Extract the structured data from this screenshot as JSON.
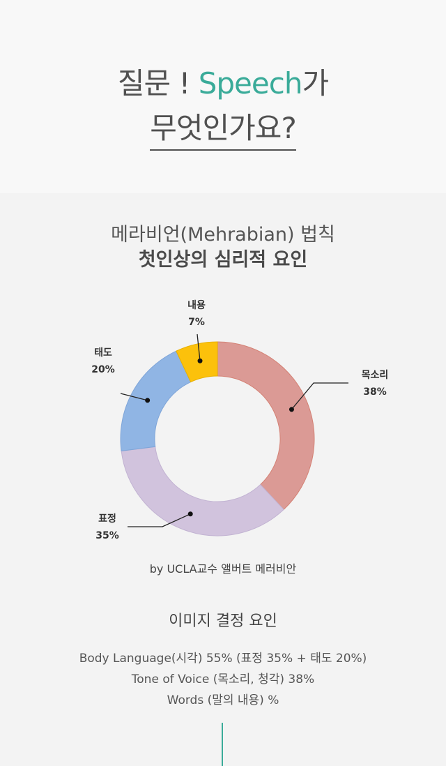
{
  "header": {
    "line1_prefix": "질문 ! ",
    "line1_accent": "Speech",
    "line1_suffix": "가",
    "line2": "무엇인가요?"
  },
  "chart_section": {
    "title": "메라비언(Mehrabian) 법칙",
    "subtitle": "첫인상의 심리적 요인",
    "credit": "by UCLA교수 앨버트 메러비안"
  },
  "chart_data": {
    "type": "pie",
    "categories": [
      "목소리",
      "표정",
      "태도",
      "내용"
    ],
    "values": [
      38,
      35,
      20,
      7
    ],
    "value_labels": [
      "38%",
      "35%",
      "20%",
      "7%"
    ],
    "colors": [
      "#db9a95",
      "#d1c3dd",
      "#90b5e4",
      "#fcc10b"
    ],
    "style": "donut"
  },
  "factors": {
    "title": "이미지 결정 요인",
    "lines": [
      "Body Language(시각) 55% (표정 35% + 태도 20%)",
      "Tone of Voice (목소리, 청각) 38%",
      "Words (말의 내용) %"
    ]
  },
  "colors": {
    "accent": "#3aab99",
    "background": "#f3f3f3"
  }
}
